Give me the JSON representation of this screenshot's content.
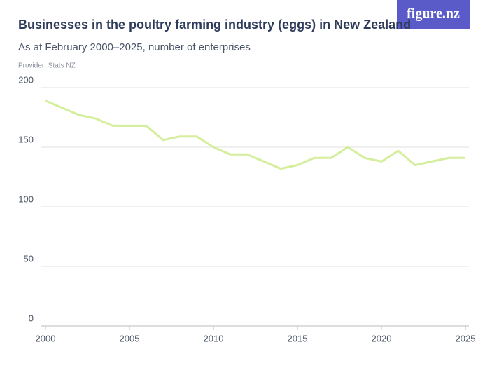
{
  "chart_data": {
    "type": "line",
    "title": "Businesses in the poultry farming industry (eggs) in New Zealand",
    "subtitle": "As at February 2000–2025, number of enterprises",
    "source": "Provider: Stats NZ",
    "logo": "figure.nz",
    "x": [
      2000,
      2001,
      2002,
      2003,
      2004,
      2005,
      2006,
      2007,
      2008,
      2009,
      2010,
      2011,
      2012,
      2013,
      2014,
      2015,
      2016,
      2017,
      2018,
      2019,
      2020,
      2021,
      2022,
      2023,
      2024,
      2025
    ],
    "series": [
      {
        "name": "Enterprises",
        "color": "#d5ee9c",
        "values": [
          189,
          183,
          177,
          174,
          168,
          168,
          168,
          156,
          159,
          159,
          150,
          144,
          144,
          138,
          132,
          135,
          141,
          141,
          150,
          141,
          138,
          147,
          135,
          138,
          141,
          141
        ]
      }
    ],
    "xlim": [
      2000,
      2025
    ],
    "xticks": [
      2000,
      2005,
      2010,
      2015,
      2020,
      2025
    ],
    "ylim": [
      0,
      200
    ],
    "yticks": [
      0,
      50,
      100,
      150,
      200
    ],
    "grid": true
  }
}
